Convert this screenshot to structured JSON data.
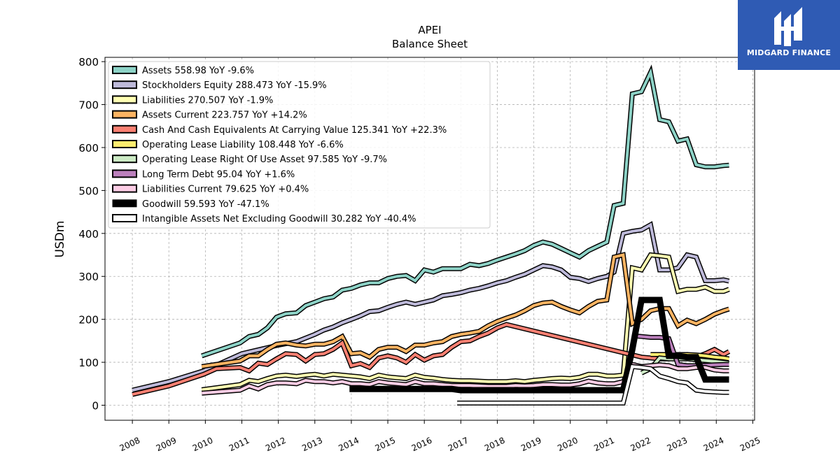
{
  "brand": {
    "name": "MIDGARD FINANCE",
    "color": "#2f5bb4"
  },
  "chart_data": {
    "type": "line",
    "title": "APEI",
    "subtitle": "Balance  Sheet",
    "ylabel": "USDm",
    "xlabel": "",
    "xlim": [
      2007.25,
      2025.05
    ],
    "ylim": [
      -35,
      810
    ],
    "yticks": [
      0,
      100,
      200,
      300,
      400,
      500,
      600,
      700,
      800
    ],
    "xticks": [
      2008,
      2009,
      2010,
      2011,
      2012,
      2013,
      2014,
      2015,
      2016,
      2017,
      2018,
      2019,
      2020,
      2021,
      2022,
      2023,
      2024,
      2025
    ],
    "grid": true,
    "legend_position": "upper-left",
    "series": [
      {
        "name": "Assets",
        "label": "Assets  558.98 YoY -9.6%",
        "color": "#8dd3c7",
        "width": 4,
        "x": [
          2009.9,
          2010.95,
          2011.2,
          2011.45,
          2011.7,
          2011.95,
          2012.2,
          2012.5,
          2012.75,
          2013.0,
          2013.25,
          2013.5,
          2013.75,
          2014.0,
          2014.25,
          2014.5,
          2014.75,
          2015.0,
          2015.25,
          2015.5,
          2015.75,
          2016.0,
          2016.25,
          2016.5,
          2016.75,
          2017.0,
          2017.25,
          2017.5,
          2017.75,
          2018.0,
          2018.25,
          2018.5,
          2018.75,
          2019.0,
          2019.25,
          2019.5,
          2019.75,
          2020.0,
          2020.25,
          2020.5,
          2020.75,
          2021.0,
          2021.2,
          2021.45,
          2021.7,
          2021.95,
          2022.2,
          2022.45,
          2022.7,
          2022.95,
          2023.2,
          2023.45,
          2023.7,
          2023.95,
          2024.2,
          2024.35
        ],
        "y": [
          115,
          145,
          160,
          165,
          180,
          205,
          213,
          215,
          232,
          240,
          248,
          252,
          268,
          272,
          280,
          285,
          285,
          295,
          300,
          302,
          290,
          315,
          310,
          318,
          318,
          318,
          328,
          325,
          330,
          338,
          345,
          352,
          360,
          372,
          380,
          375,
          365,
          355,
          345,
          360,
          370,
          380,
          465,
          470,
          725,
          730,
          775,
          665,
          660,
          615,
          620,
          560,
          555,
          555,
          558,
          559
        ]
      },
      {
        "name": "Stockholders Equity",
        "label": "Stockholders Equity  288.473 YoY -15.9%",
        "color": "#bebada",
        "width": 4,
        "x": [
          2008.0,
          2009.0,
          2009.95,
          2011.0,
          2011.5,
          2012.0,
          2012.5,
          2013.0,
          2013.25,
          2013.5,
          2013.75,
          2014.0,
          2014.25,
          2014.5,
          2014.75,
          2015.0,
          2015.25,
          2015.5,
          2015.75,
          2016.0,
          2016.25,
          2016.5,
          2016.75,
          2017.0,
          2017.25,
          2017.5,
          2017.75,
          2018.0,
          2018.25,
          2018.5,
          2018.75,
          2019.0,
          2019.25,
          2019.5,
          2019.75,
          2020.0,
          2020.25,
          2020.5,
          2020.75,
          2021.0,
          2021.2,
          2021.45,
          2021.7,
          2021.95,
          2022.2,
          2022.45,
          2022.7,
          2022.95,
          2023.2,
          2023.45,
          2023.7,
          2023.95,
          2024.2,
          2024.35
        ],
        "y": [
          35,
          55,
          80,
          120,
          130,
          140,
          148,
          165,
          175,
          182,
          192,
          200,
          208,
          218,
          220,
          228,
          235,
          240,
          235,
          240,
          245,
          255,
          258,
          262,
          268,
          272,
          278,
          285,
          290,
          298,
          305,
          315,
          325,
          322,
          315,
          298,
          295,
          288,
          295,
          300,
          310,
          400,
          405,
          408,
          420,
          315,
          315,
          320,
          350,
          345,
          290,
          290,
          292,
          289
        ]
      },
      {
        "name": "Liabilities",
        "label": "Liabilities  270.507 YoY -1.9%",
        "color": "#ffffb3",
        "width": 4,
        "x": [
          2009.9,
          2010.95,
          2011.2,
          2011.45,
          2011.7,
          2011.95,
          2012.2,
          2012.5,
          2012.75,
          2013.0,
          2013.25,
          2013.5,
          2013.75,
          2014.0,
          2014.25,
          2014.5,
          2014.75,
          2015.0,
          2015.25,
          2015.5,
          2015.75,
          2016.0,
          2016.25,
          2016.5,
          2016.75,
          2017.0,
          2017.25,
          2017.5,
          2017.75,
          2018.0,
          2018.25,
          2018.5,
          2018.75,
          2019.0,
          2019.25,
          2019.5,
          2019.75,
          2020.0,
          2020.25,
          2020.5,
          2020.75,
          2021.0,
          2021.2,
          2021.45,
          2021.7,
          2021.95,
          2022.2,
          2022.45,
          2022.7,
          2022.95,
          2023.2,
          2023.45,
          2023.7,
          2023.95,
          2024.2,
          2024.35
        ],
        "y": [
          36,
          48,
          58,
          55,
          62,
          68,
          70,
          67,
          70,
          72,
          68,
          72,
          70,
          68,
          66,
          62,
          70,
          66,
          64,
          62,
          70,
          65,
          63,
          60,
          58,
          57,
          57,
          56,
          55,
          55,
          55,
          57,
          55,
          58,
          60,
          62,
          63,
          62,
          65,
          72,
          72,
          68,
          68,
          70,
          320,
          315,
          350,
          348,
          345,
          265,
          270,
          270,
          275,
          265,
          265,
          270
        ]
      },
      {
        "name": "Assets Current",
        "label": "Assets Current  223.757 YoY +14.2%",
        "color": "#fdb462",
        "width": 4,
        "x": [
          2009.9,
          2010.95,
          2011.2,
          2011.45,
          2011.7,
          2011.95,
          2012.2,
          2012.5,
          2012.75,
          2013.0,
          2013.25,
          2013.5,
          2013.75,
          2014.0,
          2014.25,
          2014.5,
          2014.75,
          2015.0,
          2015.25,
          2015.5,
          2015.75,
          2016.0,
          2016.25,
          2016.5,
          2016.75,
          2017.0,
          2017.25,
          2017.5,
          2017.75,
          2018.0,
          2018.25,
          2018.5,
          2018.75,
          2019.0,
          2019.25,
          2019.5,
          2019.75,
          2020.0,
          2020.25,
          2020.5,
          2020.75,
          2021.0,
          2021.2,
          2021.45,
          2021.7,
          2021.95,
          2022.2,
          2022.45,
          2022.7,
          2022.95,
          2023.2,
          2023.45,
          2023.7,
          2023.95,
          2024.2,
          2024.35
        ],
        "y": [
          90,
          103,
          115,
          115,
          130,
          142,
          145,
          140,
          138,
          142,
          142,
          148,
          160,
          120,
          122,
          112,
          130,
          135,
          135,
          125,
          140,
          140,
          145,
          148,
          160,
          165,
          168,
          172,
          185,
          195,
          203,
          210,
          220,
          232,
          238,
          240,
          230,
          222,
          215,
          230,
          242,
          245,
          345,
          350,
          190,
          200,
          220,
          225,
          225,
          185,
          198,
          190,
          200,
          212,
          220,
          224
        ]
      },
      {
        "name": "Cash And Cash Equivalents At Carrying Value",
        "label": "Cash And Cash Equivalents At Carrying Value  125.341 YoY +22.3%",
        "color": "#fb8072",
        "width": 4,
        "x": [
          2008.0,
          2009.0,
          2009.95,
          2010.3,
          2010.95,
          2011.2,
          2011.45,
          2011.7,
          2011.95,
          2012.2,
          2012.5,
          2012.75,
          2013.0,
          2013.25,
          2013.5,
          2013.75,
          2014.0,
          2014.25,
          2014.5,
          2014.75,
          2015.0,
          2015.25,
          2015.5,
          2015.75,
          2016.0,
          2016.25,
          2016.5,
          2016.75,
          2017.0,
          2017.25,
          2017.5,
          2017.75,
          2018.0,
          2018.25,
          2021.95,
          2022.2,
          2022.45,
          2022.7,
          2022.95,
          2023.2,
          2023.45,
          2023.7,
          2023.95,
          2024.2,
          2024.35
        ],
        "y": [
          25,
          45,
          72,
          85,
          88,
          80,
          98,
          95,
          108,
          120,
          118,
          103,
          118,
          120,
          130,
          145,
          92,
          97,
          88,
          110,
          115,
          110,
          100,
          118,
          105,
          115,
          118,
          135,
          148,
          150,
          160,
          168,
          180,
          188,
          112,
          110,
          108,
          108,
          115,
          118,
          112,
          120,
          130,
          118,
          125
        ]
      },
      {
        "name": "Operating Lease Liability",
        "label": "Operating Lease Liability  108.448 YoY -6.6%",
        "color": "#ffed6f",
        "width": 4,
        "x": [
          2022.2,
          2022.45,
          2022.7,
          2022.95,
          2023.2,
          2023.45,
          2023.7,
          2023.95,
          2024.2,
          2024.35
        ],
        "y": [
          118,
          118,
          118,
          118,
          118,
          117,
          115,
          112,
          110,
          108
        ]
      },
      {
        "name": "Operating Lease Right Of Use Asset",
        "label": "Operating Lease Right Of Use Asset  97.585 YoY -9.7%",
        "color": "#ccebc5",
        "width": 4,
        "x": [
          2021.95,
          2022.2,
          2022.45,
          2022.7,
          2022.95,
          2023.2,
          2023.45,
          2023.7,
          2023.95,
          2024.2,
          2024.35
        ],
        "y": [
          75,
          85,
          110,
          108,
          108,
          108,
          106,
          104,
          102,
          100,
          98
        ]
      },
      {
        "name": "Long Term Debt",
        "label": "Long Term Debt  95.04 YoY +1.6%",
        "color": "#bc80bd",
        "width": 4,
        "x": [
          2021.7,
          2021.95,
          2022.2,
          2022.45,
          2022.7,
          2022.95,
          2023.2,
          2023.45,
          2023.7,
          2023.95,
          2024.2,
          2024.35
        ],
        "y": [
          162,
          160,
          158,
          158,
          155,
          95,
          92,
          92,
          93,
          94,
          95,
          95
        ]
      },
      {
        "name": "Liabilities Current",
        "label": "Liabilities Current  79.625 YoY +0.4%",
        "color": "#fccde5",
        "width": 4,
        "x": [
          2009.9,
          2010.95,
          2011.2,
          2011.45,
          2011.7,
          2011.95,
          2012.2,
          2012.5,
          2012.75,
          2013.0,
          2013.25,
          2013.5,
          2013.75,
          2014.0,
          2014.25,
          2014.5,
          2014.75,
          2015.0,
          2015.25,
          2015.5,
          2015.75,
          2016.0,
          2016.25,
          2016.5,
          2016.75,
          2017.0,
          2017.25,
          2017.5,
          2017.75,
          2018.0,
          2018.25,
          2018.5,
          2018.75,
          2019.0,
          2019.25,
          2019.5,
          2019.75,
          2020.0,
          2020.25,
          2020.5,
          2020.75,
          2021.0,
          2021.2,
          2021.45,
          2021.7,
          2021.95,
          2022.2,
          2022.45,
          2022.7,
          2022.95,
          2023.2,
          2023.45,
          2023.7,
          2023.95,
          2024.2,
          2024.35
        ],
        "y": [
          28,
          35,
          45,
          38,
          48,
          52,
          52,
          50,
          58,
          55,
          55,
          52,
          55,
          50,
          50,
          48,
          55,
          52,
          50,
          48,
          55,
          50,
          50,
          48,
          46,
          46,
          46,
          45,
          44,
          44,
          44,
          46,
          45,
          46,
          48,
          48,
          47,
          47,
          50,
          56,
          52,
          50,
          50,
          55,
          95,
          90,
          92,
          94,
          92,
          85,
          85,
          88,
          88,
          82,
          80,
          80
        ]
      },
      {
        "name": "Goodwill",
        "label": "Goodwill  59.593 YoY -47.1%",
        "color": "#000000",
        "width": 9,
        "x": [
          2013.95,
          2016.75,
          2017.0,
          2021.45,
          2021.7,
          2021.95,
          2022.2,
          2022.45,
          2022.7,
          2022.95,
          2023.2,
          2023.45,
          2023.7,
          2023.95,
          2024.2,
          2024.35
        ],
        "y": [
          38,
          38,
          35,
          35,
          130,
          245,
          245,
          245,
          115,
          115,
          112,
          112,
          60,
          60,
          60,
          60
        ]
      },
      {
        "name": "Intangible Assets Net Excluding Goodwill",
        "label": "Intangible Assets Net Excluding Goodwill  30.282 YoY -40.4%",
        "color": "#ffffff",
        "width": 4,
        "x": [
          2016.9,
          2021.0,
          2021.45,
          2021.7,
          2021.95,
          2022.2,
          2022.45,
          2022.7,
          2022.95,
          2023.2,
          2023.45,
          2023.7,
          2023.95,
          2024.2,
          2024.35
        ],
        "y": [
          5,
          5,
          5,
          90,
          88,
          85,
          68,
          62,
          55,
          52,
          35,
          32,
          31,
          30,
          30
        ]
      }
    ]
  }
}
